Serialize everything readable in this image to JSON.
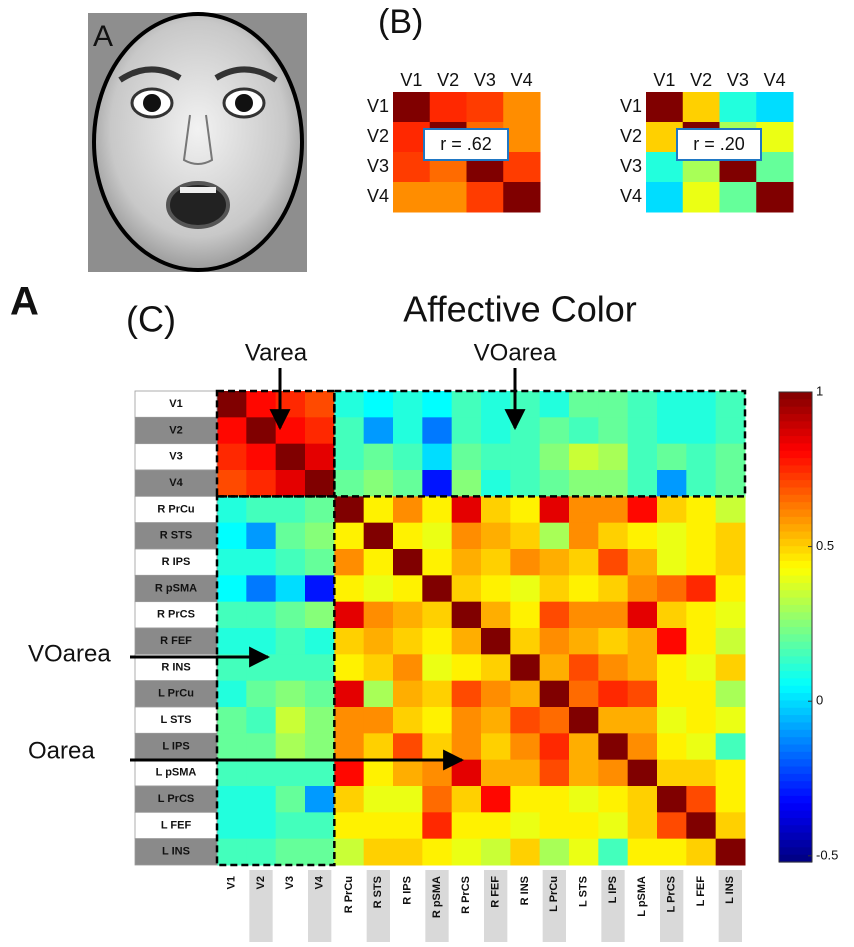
{
  "figure": {
    "panel_a_label": "A",
    "panel_b_label": "(B)",
    "main_label": "A",
    "panel_c_label": "(C)"
  },
  "chart_data": [
    {
      "type": "heatmap",
      "categories": [
        "V1",
        "V2",
        "V3",
        "V4"
      ],
      "annotation": "r = .62",
      "colormap": "jet",
      "zlim": [
        -0.52,
        1
      ],
      "values": [
        [
          1,
          0.75,
          0.72,
          0.6
        ],
        [
          0.75,
          1,
          0.65,
          0.6
        ],
        [
          0.72,
          0.65,
          1,
          0.72
        ],
        [
          0.6,
          0.6,
          0.72,
          1
        ]
      ]
    },
    {
      "type": "heatmap",
      "categories": [
        "V1",
        "V2",
        "V3",
        "V4"
      ],
      "annotation": "r = .20",
      "colormap": "jet",
      "zlim": [
        -0.52,
        1
      ],
      "values": [
        [
          1,
          0.5,
          0.1,
          0
        ],
        [
          0.5,
          1,
          0.3,
          0.4
        ],
        [
          0.1,
          0.3,
          1,
          0.2
        ],
        [
          0,
          0.4,
          0.2,
          1
        ]
      ]
    },
    {
      "type": "heatmap",
      "title": "Affective Color",
      "colormap": "jet",
      "zlim": [
        -0.52,
        1
      ],
      "zticks": [
        1,
        0.5,
        0,
        -0.5
      ],
      "categories": [
        "V1",
        "V2",
        "V3",
        "V4",
        "R PrCu",
        "R STS",
        "R IPS",
        "R pSMA",
        "R PrCS",
        "R FEF",
        "R INS",
        "L PrCu",
        "L STS",
        "L IPS",
        "L pSMA",
        "L PrCS",
        "L FEF",
        "L INS"
      ],
      "annotations": [
        "Varea",
        "VOarea",
        "VOarea",
        "Oarea"
      ],
      "values": [
        [
          1,
          0.8,
          0.75,
          0.7,
          0.1,
          0.05,
          0.1,
          0.05,
          0.15,
          0.1,
          0.15,
          0.1,
          0.2,
          0.2,
          0.15,
          0.1,
          0.1,
          0.15
        ],
        [
          0.8,
          1,
          0.8,
          0.75,
          0.15,
          -0.1,
          0.1,
          -0.15,
          0.15,
          0.1,
          0.15,
          0.2,
          0.15,
          0.2,
          0.15,
          0.1,
          0.1,
          0.15
        ],
        [
          0.75,
          0.8,
          1,
          0.85,
          0.15,
          0.2,
          0.15,
          0,
          0.2,
          0.15,
          0.15,
          0.25,
          0.35,
          0.3,
          0.15,
          0.2,
          0.15,
          0.2
        ],
        [
          0.7,
          0.75,
          0.85,
          1,
          0.2,
          0.25,
          0.2,
          -0.3,
          0.25,
          0.1,
          0.15,
          0.2,
          0.25,
          0.25,
          0.15,
          -0.1,
          0.15,
          0.2
        ],
        [
          0.1,
          0.15,
          0.15,
          0.2,
          1,
          0.45,
          0.6,
          0.45,
          0.85,
          0.5,
          0.45,
          0.85,
          0.6,
          0.6,
          0.8,
          0.5,
          0.45,
          0.35
        ],
        [
          0.05,
          -0.1,
          0.2,
          0.25,
          0.45,
          1,
          0.45,
          0.4,
          0.6,
          0.55,
          0.5,
          0.3,
          0.6,
          0.5,
          0.45,
          0.4,
          0.45,
          0.5
        ],
        [
          0.1,
          0.1,
          0.15,
          0.2,
          0.6,
          0.45,
          1,
          0.45,
          0.55,
          0.5,
          0.6,
          0.55,
          0.5,
          0.7,
          0.55,
          0.4,
          0.45,
          0.5
        ],
        [
          0.05,
          -0.15,
          0,
          -0.3,
          0.45,
          0.4,
          0.45,
          1,
          0.5,
          0.45,
          0.4,
          0.5,
          0.45,
          0.5,
          0.6,
          0.65,
          0.75,
          0.45
        ],
        [
          0.15,
          0.15,
          0.2,
          0.25,
          0.85,
          0.6,
          0.55,
          0.5,
          1,
          0.55,
          0.45,
          0.7,
          0.6,
          0.6,
          0.85,
          0.5,
          0.45,
          0.4
        ],
        [
          0.1,
          0.1,
          0.15,
          0.1,
          0.5,
          0.55,
          0.5,
          0.45,
          0.55,
          1,
          0.5,
          0.6,
          0.55,
          0.5,
          0.55,
          0.8,
          0.45,
          0.35
        ],
        [
          0.15,
          0.15,
          0.15,
          0.15,
          0.45,
          0.5,
          0.6,
          0.4,
          0.45,
          0.5,
          1,
          0.55,
          0.7,
          0.6,
          0.55,
          0.45,
          0.4,
          0.5
        ],
        [
          0.1,
          0.2,
          0.25,
          0.2,
          0.85,
          0.3,
          0.55,
          0.5,
          0.7,
          0.6,
          0.55,
          1,
          0.65,
          0.75,
          0.7,
          0.45,
          0.45,
          0.3
        ],
        [
          0.2,
          0.15,
          0.35,
          0.25,
          0.6,
          0.6,
          0.5,
          0.45,
          0.6,
          0.55,
          0.7,
          0.65,
          1,
          0.55,
          0.55,
          0.4,
          0.45,
          0.4
        ],
        [
          0.2,
          0.2,
          0.3,
          0.25,
          0.6,
          0.5,
          0.7,
          0.5,
          0.6,
          0.5,
          0.6,
          0.75,
          0.55,
          1,
          0.6,
          0.45,
          0.4,
          0.15
        ],
        [
          0.15,
          0.15,
          0.15,
          0.15,
          0.8,
          0.45,
          0.55,
          0.6,
          0.85,
          0.55,
          0.55,
          0.7,
          0.55,
          0.6,
          1,
          0.5,
          0.5,
          0.45
        ],
        [
          0.1,
          0.1,
          0.2,
          -0.1,
          0.5,
          0.4,
          0.4,
          0.65,
          0.5,
          0.8,
          0.45,
          0.45,
          0.4,
          0.45,
          0.5,
          1,
          0.7,
          0.45
        ],
        [
          0.1,
          0.1,
          0.15,
          0.15,
          0.45,
          0.45,
          0.45,
          0.75,
          0.45,
          0.45,
          0.4,
          0.45,
          0.45,
          0.4,
          0.5,
          0.7,
          1,
          0.5
        ],
        [
          0.15,
          0.15,
          0.2,
          0.2,
          0.35,
          0.5,
          0.5,
          0.45,
          0.4,
          0.35,
          0.5,
          0.3,
          0.4,
          0.15,
          0.45,
          0.45,
          0.5,
          1
        ]
      ]
    }
  ]
}
